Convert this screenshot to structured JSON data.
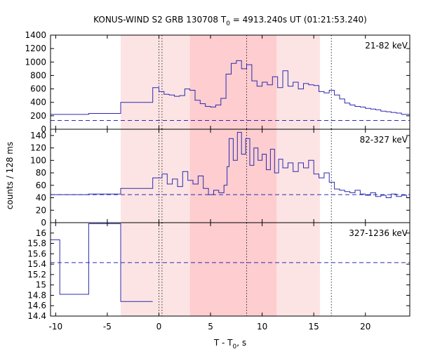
{
  "title_main": "KONUS-WIND S2 GRB 130708 T",
  "title_sub": "0",
  "title_rest": " = 4913.240s UT (01:21:53.240)",
  "ylabel": "counts / 128 ms",
  "xlabel_main": "T - T",
  "xlabel_sub": "0",
  "xlabel_rest": ", s",
  "chart_data": {
    "type": "line",
    "x_range": [
      -10.5,
      24.3
    ],
    "x_ticks": [
      -10,
      -5,
      0,
      5,
      10,
      15,
      20
    ],
    "shaded_regions": [
      {
        "from": -3.7,
        "to": 15.6,
        "color": "#fde4e4"
      },
      {
        "from": 3.0,
        "to": 11.4,
        "color": "#fdcdd0"
      }
    ],
    "vertical_markers": [
      0.0,
      0.3,
      8.5,
      16.7
    ],
    "line_color": "#2b2bb0",
    "panels": [
      {
        "label": "21-82 keV",
        "ylim": [
          0,
          1400
        ],
        "y_ticks": [
          0,
          200,
          400,
          600,
          800,
          1000,
          1200,
          1400
        ],
        "background_level": 130,
        "series": {
          "name": "21-82 keV",
          "x": [
            -10.5,
            -6.8,
            -6.8,
            -3.7,
            -3.7,
            -0.6,
            -0.6,
            -0.4,
            0.0,
            0.5,
            1.0,
            1.5,
            2.0,
            2.5,
            3.0,
            3.5,
            4.0,
            4.5,
            5.0,
            5.5,
            6.0,
            6.5,
            7.0,
            7.5,
            8.0,
            8.5,
            9.0,
            9.5,
            10.0,
            10.5,
            11.0,
            11.5,
            12.0,
            12.5,
            13.0,
            13.5,
            14.0,
            14.5,
            15.0,
            15.5,
            16.0,
            16.5,
            17.0,
            17.5,
            18.0,
            18.5,
            19.0,
            19.5,
            20.0,
            20.5,
            21.0,
            21.5,
            22.0,
            22.5,
            23.0,
            23.5,
            24.0,
            24.3
          ],
          "y": [
            220,
            220,
            235,
            235,
            400,
            400,
            620,
            620,
            560,
            520,
            510,
            490,
            500,
            600,
            580,
            430,
            380,
            340,
            330,
            360,
            460,
            820,
            980,
            1020,
            900,
            960,
            720,
            640,
            700,
            660,
            780,
            620,
            870,
            640,
            700,
            600,
            680,
            660,
            650,
            560,
            540,
            580,
            510,
            450,
            390,
            360,
            340,
            330,
            310,
            300,
            290,
            270,
            260,
            250,
            240,
            220,
            220,
            210
          ]
        }
      },
      {
        "label": "82-327 keV",
        "ylim": [
          0,
          150
        ],
        "y_ticks": [
          0,
          20,
          40,
          60,
          80,
          100,
          120,
          140
        ],
        "background_level": 45,
        "series": {
          "name": "82-327 keV",
          "x": [
            -10.5,
            -6.8,
            -6.8,
            -3.7,
            -3.7,
            -0.6,
            -0.6,
            -0.2,
            0.3,
            0.8,
            1.3,
            1.8,
            2.3,
            2.8,
            3.3,
            3.8,
            4.3,
            4.8,
            5.3,
            5.8,
            6.3,
            6.6,
            6.8,
            7.2,
            7.6,
            8.0,
            8.4,
            8.8,
            9.2,
            9.6,
            10.0,
            10.4,
            10.8,
            11.2,
            11.6,
            12.0,
            12.5,
            13.0,
            13.5,
            14.0,
            14.5,
            15.0,
            15.5,
            16.0,
            16.5,
            17.0,
            17.5,
            18.0,
            18.5,
            19.0,
            19.5,
            20.0,
            20.5,
            21.0,
            21.5,
            22.0,
            22.5,
            23.0,
            23.5,
            24.0,
            24.3
          ],
          "y": [
            45,
            45,
            46,
            46,
            55,
            55,
            72,
            72,
            78,
            62,
            70,
            58,
            82,
            68,
            62,
            75,
            55,
            45,
            52,
            48,
            60,
            90,
            135,
            100,
            145,
            110,
            135,
            92,
            120,
            100,
            110,
            85,
            118,
            80,
            102,
            88,
            96,
            82,
            96,
            88,
            100,
            78,
            72,
            80,
            65,
            54,
            52,
            50,
            48,
            52,
            46,
            44,
            48,
            42,
            44,
            40,
            46,
            42,
            44,
            40,
            40
          ]
        }
      },
      {
        "label": "327-1236 keV",
        "ylim": [
          14.4,
          16.2
        ],
        "y_ticks": [
          14.4,
          14.6,
          14.8,
          15,
          15.2,
          15.4,
          15.6,
          15.8,
          16
        ],
        "background_level": 15.43,
        "series": {
          "name": "327-1236 keV",
          "x": [
            -10.5,
            -9.6,
            -9.6,
            -6.8,
            -6.8,
            -3.7,
            -3.7,
            -0.6
          ],
          "y": [
            15.87,
            15.87,
            14.82,
            14.82,
            16.18,
            16.18,
            14.68,
            14.68
          ]
        }
      }
    ]
  }
}
